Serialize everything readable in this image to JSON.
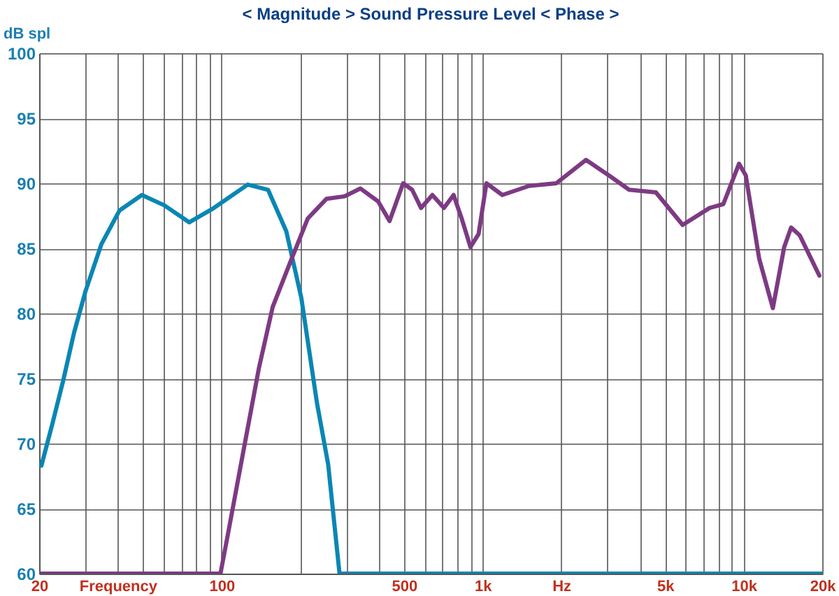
{
  "chart_data": {
    "type": "line",
    "title": "< Magnitude >   Sound Pressure Level   < Phase >",
    "ylabel": "dB spl",
    "series": [
      {
        "color": "#0a86b4",
        "x": [
          20.4,
          22.4,
          24.7,
          27.2,
          30.1,
          34.6,
          40.6,
          49.5,
          60.4,
          75.1,
          93.4,
          125.9,
          150.6,
          177,
          202,
          232,
          256,
          283,
          20000
        ],
        "values": [
          68.3,
          71.4,
          74.8,
          78.5,
          81.7,
          85.3,
          87.9,
          89.1,
          88.3,
          87.0,
          88.1,
          89.9,
          89.5,
          86.3,
          81.2,
          73.1,
          68.4,
          60,
          60
        ]
      },
      {
        "color": "#7d3a83",
        "x": [
          20,
          99,
          105,
          123,
          139,
          157,
          183,
          214,
          252,
          296,
          340,
          398,
          440,
          496,
          537,
          581,
          642,
          711,
          774,
          831,
          898,
          965,
          1034,
          1190,
          1507,
          1915,
          2488,
          3101,
          3640,
          4610,
          5840,
          7400,
          8360,
          9600,
          10190,
          11470,
          12940,
          14300,
          15200,
          16400,
          19500
        ],
        "values": [
          60,
          60,
          62.7,
          70.1,
          75.8,
          80.5,
          83.9,
          87.3,
          88.8,
          89.0,
          89.6,
          88.6,
          87.1,
          90.0,
          89.5,
          88.1,
          89.1,
          88.1,
          89.1,
          87.3,
          85.1,
          86.1,
          90.0,
          89.1,
          89.8,
          90.0,
          91.8,
          90.5,
          89.5,
          89.3,
          86.8,
          88.1,
          88.4,
          91.5,
          90.6,
          84.2,
          80.4,
          85.1,
          86.6,
          86.0,
          82.9
        ]
      }
    ],
    "log": "x",
    "xlim": [
      20,
      20000
    ],
    "ylim": [
      60,
      100
    ],
    "yticks": [
      60,
      65,
      70,
      75,
      80,
      85,
      90,
      95,
      100
    ],
    "xticks": [
      20,
      {
        "value": 30,
        "label": null
      },
      {
        "value": 40,
        "label": "Frequency"
      },
      {
        "value": 50,
        "label": null
      },
      {
        "value": 60,
        "label": null
      },
      {
        "value": 70,
        "label": null
      },
      {
        "value": 80,
        "label": null
      },
      {
        "value": 90,
        "label": null
      },
      100,
      {
        "value": 200,
        "label": null
      },
      {
        "value": 300,
        "label": null
      },
      {
        "value": 400,
        "label": null
      },
      500,
      {
        "value": 600,
        "label": null
      },
      {
        "value": 700,
        "label": null
      },
      {
        "value": 800,
        "label": null
      },
      {
        "value": 900,
        "label": null
      },
      {
        "value": 1000,
        "label": "1k"
      },
      {
        "value": 2000,
        "label": "Hz"
      },
      {
        "value": 3000,
        "label": null
      },
      {
        "value": 4000,
        "label": null
      },
      {
        "value": 5000,
        "label": "5k"
      },
      {
        "value": 6000,
        "label": null
      },
      {
        "value": 7000,
        "label": null
      },
      {
        "value": 8000,
        "label": null
      },
      {
        "value": 9000,
        "label": null
      },
      {
        "value": 10000,
        "label": "10k"
      },
      {
        "value": 20000,
        "label": "20k"
      }
    ],
    "grid": true,
    "marker": "none",
    "line_style": "solid"
  }
}
